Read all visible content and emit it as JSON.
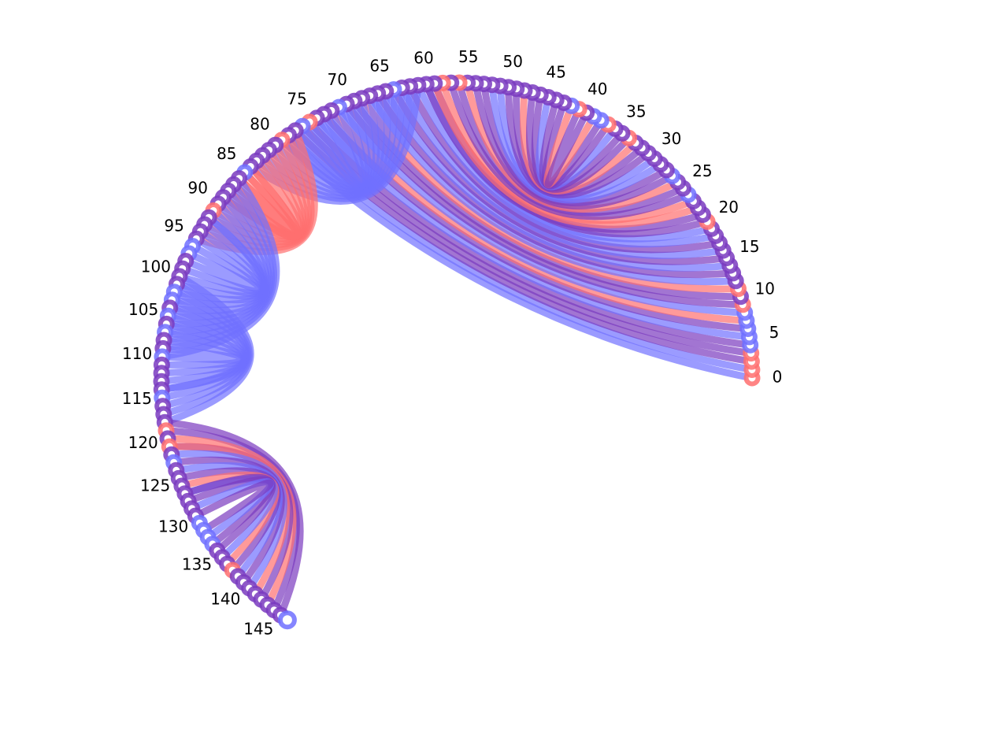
{
  "figure": {
    "background": "#ffffff",
    "colors": {
      "red": "#ff6f6f",
      "blue": "#7070ff",
      "purple": "#7a3bbf",
      "node_fill": "#ffffff"
    }
  },
  "chart_data": {
    "type": "arc-diagram",
    "node_count": 148,
    "tick_labels": [
      "0",
      "5",
      "10",
      "15",
      "20",
      "25",
      "30",
      "35",
      "40",
      "45",
      "50",
      "55",
      "60",
      "65",
      "70",
      "75",
      "80",
      "85",
      "90",
      "95",
      "100",
      "105",
      "110",
      "115",
      "120",
      "125",
      "130",
      "135",
      "140",
      "145"
    ],
    "node_colors": {
      "red_nodes": [
        0,
        1,
        2,
        3,
        9,
        11,
        20,
        34,
        37,
        41,
        56,
        58,
        75,
        79,
        91,
        119,
        121,
        138
      ],
      "blue_nodes": [
        4,
        5,
        6,
        7,
        8,
        24,
        27,
        38,
        39,
        42,
        64,
        71,
        76,
        85,
        96,
        97,
        102,
        103,
        105,
        107,
        110,
        115,
        123,
        131,
        132,
        133,
        134,
        147
      ],
      "default": "purple"
    },
    "edge_groups": [
      {
        "from": [
          0,
          20
        ],
        "to": [
          59,
          79
        ],
        "color": "mixed"
      },
      {
        "from": [
          21,
          40
        ],
        "to": [
          41,
          60
        ],
        "color": "mixed"
      },
      {
        "from": [
          61,
          72
        ],
        "to": [
          73,
          84
        ],
        "color": "blue"
      },
      {
        "from": [
          77,
          89
        ],
        "to": [
          84,
          95
        ],
        "color": "red"
      },
      {
        "from": [
          86,
          97
        ],
        "to": [
          98,
          110
        ],
        "color": "blue"
      },
      {
        "from": [
          100,
          109
        ],
        "to": [
          110,
          118
        ],
        "color": "blue"
      },
      {
        "from": [
          118,
          130
        ],
        "to": [
          132,
          146
        ],
        "color": "mixed"
      }
    ]
  }
}
